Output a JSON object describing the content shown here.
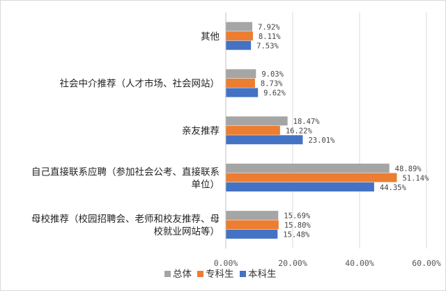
{
  "chart_data": {
    "type": "bar",
    "orientation": "horizontal",
    "categories": [
      [
        "其他"
      ],
      [
        "社会中介推荐（人才市场、社会网站）"
      ],
      [
        "亲友推荐"
      ],
      [
        "自己直接联系应聘（参加社会公考、直接联系",
        "单位）"
      ],
      [
        "母校推荐（校园招聘会、老师和校友推荐、母",
        "校就业网站等）"
      ]
    ],
    "series": [
      {
        "name": "总体",
        "color": "#a5a5a5",
        "values": [
          7.92,
          9.03,
          18.47,
          48.89,
          15.69
        ],
        "labels": [
          "7.92%",
          "9.03%",
          "18.47%",
          "48.89%",
          "15.69%"
        ]
      },
      {
        "name": "专科生",
        "color": "#ed7d31",
        "values": [
          8.11,
          8.73,
          16.22,
          51.14,
          15.8
        ],
        "labels": [
          "8.11%",
          "8.73%",
          "16.22%",
          "51.14%",
          "15.80%"
        ]
      },
      {
        "name": "本科生",
        "color": "#4472c4",
        "values": [
          7.53,
          9.62,
          23.01,
          44.35,
          15.48
        ],
        "labels": [
          "7.53%",
          "9.62%",
          "23.01%",
          "44.35%",
          "15.48%"
        ]
      }
    ],
    "xlim": [
      0,
      60
    ],
    "xticks": [
      0,
      20,
      40,
      60
    ],
    "xtick_labels": [
      "0.00%",
      "20.00%",
      "40.00%",
      "60.00%"
    ],
    "grid": true,
    "legend_position": "bottom"
  }
}
